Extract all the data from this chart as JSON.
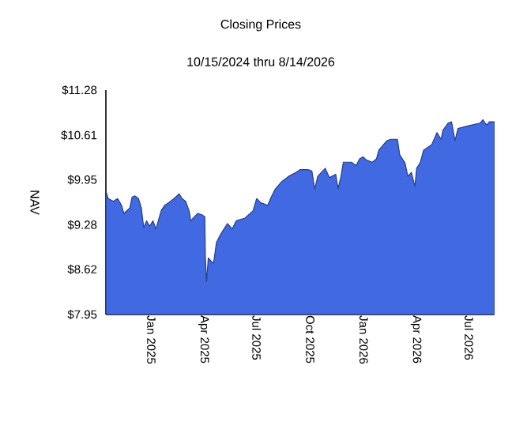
{
  "chart_data": {
    "type": "area",
    "title": "Closing Prices",
    "subtitle": "10/15/2024 thru 8/14/2026",
    "ylabel": "NAV",
    "xlim": [
      "2024-10-15",
      "2026-08-14"
    ],
    "ylim": [
      7.95,
      11.28
    ],
    "xticks": [
      {
        "value": "2025-01-01",
        "label": "Jan 2025"
      },
      {
        "value": "2025-04-01",
        "label": "Apr 2025"
      },
      {
        "value": "2025-07-01",
        "label": "Jul 2025"
      },
      {
        "value": "2025-10-01",
        "label": "Oct 2025"
      },
      {
        "value": "2026-01-01",
        "label": "Jan 2026"
      },
      {
        "value": "2026-04-01",
        "label": "Apr 2026"
      },
      {
        "value": "2026-07-01",
        "label": "Jul 2026"
      }
    ],
    "yticks": [
      {
        "value": 7.95,
        "label": "$7.95"
      },
      {
        "value": 8.62,
        "label": "$8.62"
      },
      {
        "value": 9.28,
        "label": "$9.28"
      },
      {
        "value": 9.95,
        "label": "$9.95"
      },
      {
        "value": 10.61,
        "label": "$10.61"
      },
      {
        "value": 11.28,
        "label": "$11.28"
      }
    ],
    "grid": false,
    "series": [
      {
        "color": "#4169e1",
        "x": [
          "2024-10-15",
          "2024-10-19",
          "2024-10-28",
          "2024-11-04",
          "2024-11-11",
          "2024-11-15",
          "2024-11-25",
          "2024-11-29",
          "2024-12-04",
          "2024-12-10",
          "2024-12-15",
          "2024-12-19",
          "2024-12-24",
          "2024-12-29",
          "2025-01-04",
          "2025-01-09",
          "2025-01-18",
          "2025-01-24",
          "2025-01-31",
          "2025-02-09",
          "2025-02-18",
          "2025-02-23",
          "2025-03-01",
          "2025-03-07",
          "2025-03-10",
          "2025-03-16",
          "2025-03-22",
          "2025-03-29",
          "2025-04-03",
          "2025-04-04",
          "2025-04-06",
          "2025-04-09",
          "2025-04-13",
          "2025-04-18",
          "2025-04-23",
          "2025-04-30",
          "2025-05-06",
          "2025-05-12",
          "2025-05-20",
          "2025-05-27",
          "2025-06-11",
          "2025-06-25",
          "2025-07-01",
          "2025-07-08",
          "2025-07-20",
          "2025-07-26",
          "2025-08-02",
          "2025-08-13",
          "2025-08-25",
          "2025-09-07",
          "2025-09-14",
          "2025-09-27",
          "2025-10-04",
          "2025-10-09",
          "2025-10-14",
          "2025-10-27",
          "2025-11-03",
          "2025-11-14",
          "2025-11-18",
          "2025-11-23",
          "2025-11-27",
          "2025-12-11",
          "2025-12-19",
          "2025-12-25",
          "2025-12-31",
          "2026-01-06",
          "2026-01-16",
          "2026-01-23",
          "2026-01-27",
          "2026-02-10",
          "2026-02-16",
          "2026-02-28",
          "2026-03-04",
          "2026-03-13",
          "2026-03-18",
          "2026-03-24",
          "2026-03-30",
          "2026-04-02",
          "2026-04-08",
          "2026-04-14",
          "2026-04-28",
          "2026-05-07",
          "2026-05-14",
          "2026-05-17",
          "2026-05-26",
          "2026-06-01",
          "2026-06-07",
          "2026-06-12",
          "2026-06-30",
          "2026-07-20",
          "2026-07-25",
          "2026-07-31",
          "2026-08-05",
          "2026-08-14"
        ],
        "values": [
          9.78,
          9.67,
          9.63,
          9.67,
          9.57,
          9.45,
          9.53,
          9.69,
          9.71,
          9.67,
          9.53,
          9.24,
          9.34,
          9.26,
          9.34,
          9.22,
          9.49,
          9.57,
          9.61,
          9.67,
          9.74,
          9.67,
          9.63,
          9.49,
          9.34,
          9.4,
          9.45,
          9.43,
          9.4,
          8.79,
          8.44,
          8.79,
          8.75,
          8.71,
          9.02,
          9.14,
          9.22,
          9.3,
          9.22,
          9.34,
          9.38,
          9.49,
          9.67,
          9.61,
          9.57,
          9.69,
          9.81,
          9.92,
          10.0,
          10.06,
          10.1,
          10.1,
          10.08,
          9.81,
          10.0,
          10.12,
          9.98,
          10.03,
          9.82,
          10.0,
          10.21,
          10.21,
          10.16,
          10.26,
          10.29,
          10.24,
          10.21,
          10.26,
          10.39,
          10.53,
          10.55,
          10.55,
          10.32,
          10.2,
          10.0,
          10.06,
          9.85,
          10.12,
          10.2,
          10.39,
          10.47,
          10.65,
          10.55,
          10.68,
          10.79,
          10.81,
          10.53,
          10.71,
          10.75,
          10.79,
          10.84,
          10.76,
          10.81,
          10.81
        ]
      }
    ]
  }
}
